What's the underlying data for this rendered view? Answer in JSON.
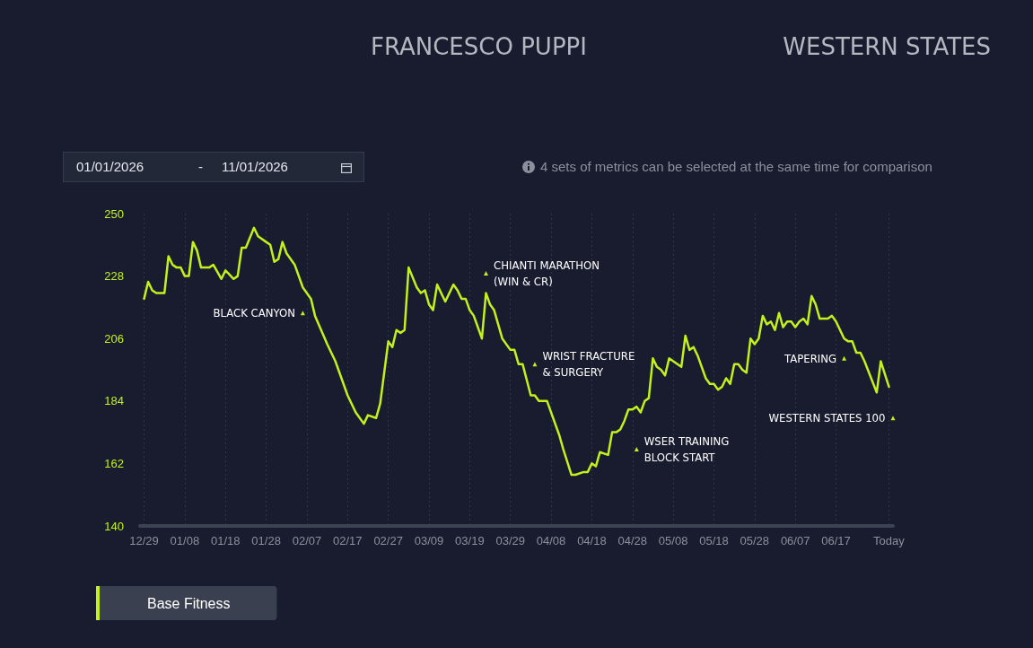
{
  "chart_data": {
    "type": "line",
    "title": "FRANCESCO PUPPI",
    "subtitle": "WESTERN STATES",
    "x": [
      "2025-12-29",
      "2025-12-30",
      "2025-12-31",
      "2026-01-01",
      "2026-01-03",
      "2026-01-04",
      "2026-01-05",
      "2026-01-06",
      "2026-01-07",
      "2026-01-08",
      "2026-01-09",
      "2026-01-10",
      "2026-01-11",
      "2026-01-12",
      "2026-01-14",
      "2026-01-15",
      "2026-01-17",
      "2026-01-18",
      "2026-01-20",
      "2026-01-21",
      "2026-01-22",
      "2026-01-23",
      "2026-01-25",
      "2026-01-26",
      "2026-01-28",
      "2026-01-29",
      "2026-01-30",
      "2026-01-31",
      "2026-02-01",
      "2026-02-02",
      "2026-02-04",
      "2026-02-06",
      "2026-02-08",
      "2026-02-09",
      "2026-02-12",
      "2026-02-14",
      "2026-02-17",
      "2026-02-19",
      "2026-02-21",
      "2026-02-22",
      "2026-02-24",
      "2026-02-25",
      "2026-02-27",
      "2026-02-28",
      "2026-03-01",
      "2026-03-02",
      "2026-03-03",
      "2026-03-04",
      "2026-03-06",
      "2026-03-07",
      "2026-03-08",
      "2026-03-09",
      "2026-03-10",
      "2026-03-11",
      "2026-03-13",
      "2026-03-15",
      "2026-03-16",
      "2026-03-17",
      "2026-03-18",
      "2026-03-19",
      "2026-03-20",
      "2026-03-21",
      "2026-03-22",
      "2026-03-23",
      "2026-03-24",
      "2026-03-25",
      "2026-03-27",
      "2026-03-29",
      "2026-03-30",
      "2026-03-31",
      "2026-04-01",
      "2026-04-03",
      "2026-04-04",
      "2026-04-05",
      "2026-04-07",
      "2026-04-10",
      "2026-04-11",
      "2026-04-13",
      "2026-04-14",
      "2026-04-16",
      "2026-04-17",
      "2026-04-18",
      "2026-04-19",
      "2026-04-20",
      "2026-04-22",
      "2026-04-23",
      "2026-04-24",
      "2026-04-25",
      "2026-04-26",
      "2026-04-27",
      "2026-04-28",
      "2026-04-29",
      "2026-04-30",
      "2026-05-01",
      "2026-05-02",
      "2026-05-03",
      "2026-05-04",
      "2026-05-05",
      "2026-05-06",
      "2026-05-07",
      "2026-05-10",
      "2026-05-11",
      "2026-05-12",
      "2026-05-13",
      "2026-05-14",
      "2026-05-16",
      "2026-05-17",
      "2026-05-18",
      "2026-05-19",
      "2026-05-20",
      "2026-05-21",
      "2026-05-22",
      "2026-05-23",
      "2026-05-24",
      "2026-05-25",
      "2026-05-26",
      "2026-05-27",
      "2026-05-28",
      "2026-05-29",
      "2026-05-30",
      "2026-05-31",
      "2026-06-01",
      "2026-06-02",
      "2026-06-03",
      "2026-06-04",
      "2026-06-05",
      "2026-06-06",
      "2026-06-07",
      "2026-06-08",
      "2026-06-09",
      "2026-06-10",
      "2026-06-11",
      "2026-06-12",
      "2026-06-13",
      "2026-06-15",
      "2026-06-16",
      "2026-06-17",
      "2026-06-19",
      "2026-06-20",
      "2026-06-21",
      "2026-06-22",
      "2026-06-23",
      "2026-06-24",
      "2026-06-27",
      "2026-06-28",
      "2026-06-30"
    ],
    "series": [
      {
        "name": "Base Fitness",
        "color": "#c4f01c",
        "values": [
          220,
          226,
          223,
          222,
          222,
          235,
          232,
          231,
          231,
          228,
          228,
          240,
          237,
          231,
          231,
          232,
          227,
          230,
          227,
          228,
          238,
          238,
          245,
          242,
          240,
          239,
          233,
          234,
          240,
          236,
          232,
          224,
          220,
          214,
          204,
          198,
          186,
          180,
          176,
          179,
          178,
          183,
          205,
          203,
          209,
          208,
          209,
          231,
          224,
          222,
          223,
          218,
          216,
          225,
          219,
          225,
          223,
          220,
          220,
          216,
          214,
          210,
          206,
          222,
          218,
          216,
          206,
          202,
          202,
          197,
          197,
          186,
          186,
          184,
          184,
          172,
          167,
          158,
          158,
          159,
          159,
          162,
          161,
          166,
          165,
          173,
          173,
          174,
          177,
          181,
          181,
          182,
          180,
          184,
          185,
          199,
          196,
          195,
          193,
          199,
          196,
          207,
          202,
          203,
          200,
          192,
          190,
          190,
          188,
          189,
          192,
          190,
          197,
          197,
          195,
          194,
          206,
          204,
          206,
          214,
          211,
          212,
          209,
          215,
          210,
          212,
          212,
          210,
          212,
          213,
          211,
          221,
          218,
          213,
          213,
          214,
          212,
          206,
          205,
          205,
          201,
          201,
          198,
          187,
          198,
          189
        ]
      }
    ],
    "xlim": [
      "2025-12-28",
      "2026-07-01"
    ],
    "xticks": [
      {
        "value": "2025-12-29",
        "label": "12/29"
      },
      {
        "value": "2026-01-08",
        "label": "01/08"
      },
      {
        "value": "2026-01-18",
        "label": "01/18"
      },
      {
        "value": "2026-01-28",
        "label": "01/28"
      },
      {
        "value": "2026-02-07",
        "label": "02/07"
      },
      {
        "value": "2026-02-17",
        "label": "02/17"
      },
      {
        "value": "2026-02-27",
        "label": "02/27"
      },
      {
        "value": "2026-03-09",
        "label": "03/09"
      },
      {
        "value": "2026-03-19",
        "label": "03/19"
      },
      {
        "value": "2026-03-29",
        "label": "03/29"
      },
      {
        "value": "2026-04-08",
        "label": "04/08"
      },
      {
        "value": "2026-04-18",
        "label": "04/18"
      },
      {
        "value": "2026-04-28",
        "label": "04/28"
      },
      {
        "value": "2026-05-08",
        "label": "05/08"
      },
      {
        "value": "2026-05-18",
        "label": "05/18"
      },
      {
        "value": "2026-05-28",
        "label": "05/28"
      },
      {
        "value": "2026-06-07",
        "label": "06/07"
      },
      {
        "value": "2026-06-17",
        "label": "06/17"
      },
      {
        "value": "2026-06-30",
        "label": "Today"
      }
    ],
    "ylim": [
      140,
      250
    ],
    "yticks": [
      140,
      162,
      184,
      206,
      228,
      250
    ],
    "grid": "x",
    "legend": "bottom left",
    "marker": "none",
    "line_style": "solid",
    "annotations": [
      "01/01/2026 - 11/01/2026",
      "4 sets of metrics can be selected at the same time for comparison",
      {
        "text": "BLACK CANYON",
        "x": "2026-02-06",
        "y": 215
      },
      {
        "text": "CHIANTI MARATHON\n(WIN & CR)",
        "x": "2026-03-23",
        "y": 229
      },
      {
        "text": "WRIST FRACTURE\n& SURGERY",
        "x": "2026-04-04",
        "y": 197
      },
      {
        "text": "WSER TRAINING\nBLOCK START",
        "x": "2026-04-29",
        "y": 167
      },
      {
        "text": "TAPERING",
        "x": "2026-06-19",
        "y": 199
      },
      {
        "text": "WESTERN STATES 100",
        "x": "2026-07-01",
        "y": 178
      }
    ]
  }
}
